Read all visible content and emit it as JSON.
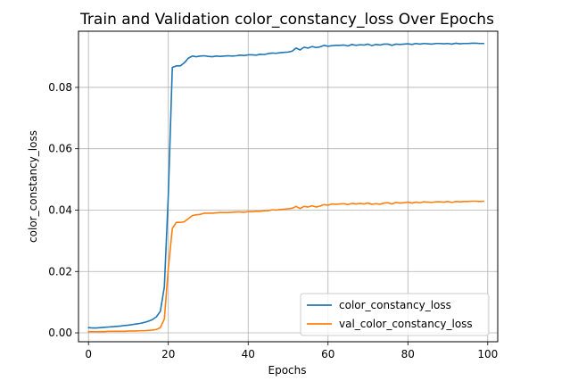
{
  "chart_data": {
    "type": "line",
    "title": "Train and Validation color_constancy_loss Over Epochs",
    "xlabel": "Epochs",
    "ylabel": "color_constancy_loss",
    "xlim": [
      -2.5,
      102.5
    ],
    "ylim": [
      -0.0029,
      0.0983
    ],
    "xticks": [
      0,
      20,
      40,
      60,
      80,
      100
    ],
    "xtick_labels": [
      "0",
      "20",
      "40",
      "60",
      "80",
      "100"
    ],
    "yticks": [
      0.0,
      0.02,
      0.04,
      0.06,
      0.08
    ],
    "ytick_labels": [
      "0.00",
      "0.02",
      "0.04",
      "0.06",
      "0.08"
    ],
    "grid": true,
    "legend_position": "lower-right",
    "x": [
      0,
      1,
      2,
      3,
      4,
      5,
      6,
      7,
      8,
      9,
      10,
      11,
      12,
      13,
      14,
      15,
      16,
      17,
      18,
      19,
      20,
      21,
      22,
      23,
      24,
      25,
      26,
      27,
      28,
      29,
      30,
      31,
      32,
      33,
      34,
      35,
      36,
      37,
      38,
      39,
      40,
      41,
      42,
      43,
      44,
      45,
      46,
      47,
      48,
      49,
      50,
      51,
      52,
      53,
      54,
      55,
      56,
      57,
      58,
      59,
      60,
      61,
      62,
      63,
      64,
      65,
      66,
      67,
      68,
      69,
      70,
      71,
      72,
      73,
      74,
      75,
      76,
      77,
      78,
      79,
      80,
      81,
      82,
      83,
      84,
      85,
      86,
      87,
      88,
      89,
      90,
      91,
      92,
      93,
      94,
      95,
      96,
      97,
      98,
      99
    ],
    "series": [
      {
        "name": "color_constancy_loss",
        "color": "#1f77b4",
        "values": [
          0.0017,
          0.0016,
          0.0016,
          0.0017,
          0.0018,
          0.0019,
          0.002,
          0.0021,
          0.0022,
          0.0024,
          0.0025,
          0.0027,
          0.0029,
          0.0031,
          0.0034,
          0.0038,
          0.0043,
          0.0052,
          0.007,
          0.015,
          0.045,
          0.0865,
          0.087,
          0.087,
          0.088,
          0.0895,
          0.0902,
          0.09,
          0.0902,
          0.0903,
          0.0901,
          0.09,
          0.0902,
          0.0901,
          0.0902,
          0.0903,
          0.0902,
          0.0903,
          0.0905,
          0.0904,
          0.0906,
          0.0906,
          0.0905,
          0.0908,
          0.0907,
          0.091,
          0.0912,
          0.0911,
          0.0913,
          0.0914,
          0.0915,
          0.0918,
          0.0928,
          0.0922,
          0.0931,
          0.0928,
          0.0933,
          0.093,
          0.0932,
          0.0937,
          0.0934,
          0.0936,
          0.0937,
          0.0937,
          0.0938,
          0.0935,
          0.094,
          0.0937,
          0.0939,
          0.0938,
          0.0941,
          0.0936,
          0.094,
          0.0938,
          0.0941,
          0.0941,
          0.0937,
          0.0941,
          0.094,
          0.0941,
          0.0942,
          0.094,
          0.0943,
          0.0941,
          0.0943,
          0.0942,
          0.0941,
          0.0943,
          0.0943,
          0.0942,
          0.0943,
          0.0941,
          0.0944,
          0.0942,
          0.0943,
          0.0943,
          0.0944,
          0.0944,
          0.0943,
          0.0943
        ]
      },
      {
        "name": "val_color_constancy_loss",
        "color": "#ff7f0e",
        "values": [
          0.0004,
          0.0004,
          0.0004,
          0.0004,
          0.0004,
          0.0005,
          0.0005,
          0.0005,
          0.0005,
          0.0005,
          0.0006,
          0.0006,
          0.0006,
          0.0007,
          0.0007,
          0.0008,
          0.0009,
          0.0011,
          0.0017,
          0.0045,
          0.021,
          0.034,
          0.036,
          0.036,
          0.0362,
          0.0372,
          0.0382,
          0.0385,
          0.0386,
          0.039,
          0.039,
          0.039,
          0.0391,
          0.0392,
          0.0392,
          0.0392,
          0.0393,
          0.0394,
          0.0394,
          0.0393,
          0.0395,
          0.0395,
          0.0396,
          0.0396,
          0.0398,
          0.0398,
          0.0401,
          0.04,
          0.0402,
          0.0403,
          0.0404,
          0.0406,
          0.0412,
          0.0405,
          0.0412,
          0.041,
          0.0414,
          0.041,
          0.0413,
          0.0418,
          0.0416,
          0.042,
          0.0419,
          0.042,
          0.0421,
          0.0418,
          0.0422,
          0.042,
          0.0422,
          0.042,
          0.0423,
          0.0419,
          0.0421,
          0.0419,
          0.0423,
          0.0424,
          0.042,
          0.0425,
          0.0423,
          0.0424,
          0.0426,
          0.0423,
          0.0426,
          0.0424,
          0.0427,
          0.0426,
          0.0425,
          0.0427,
          0.0427,
          0.0426,
          0.0428,
          0.0425,
          0.0428,
          0.0427,
          0.0428,
          0.0428,
          0.0429,
          0.0429,
          0.0428,
          0.0429
        ]
      }
    ]
  }
}
